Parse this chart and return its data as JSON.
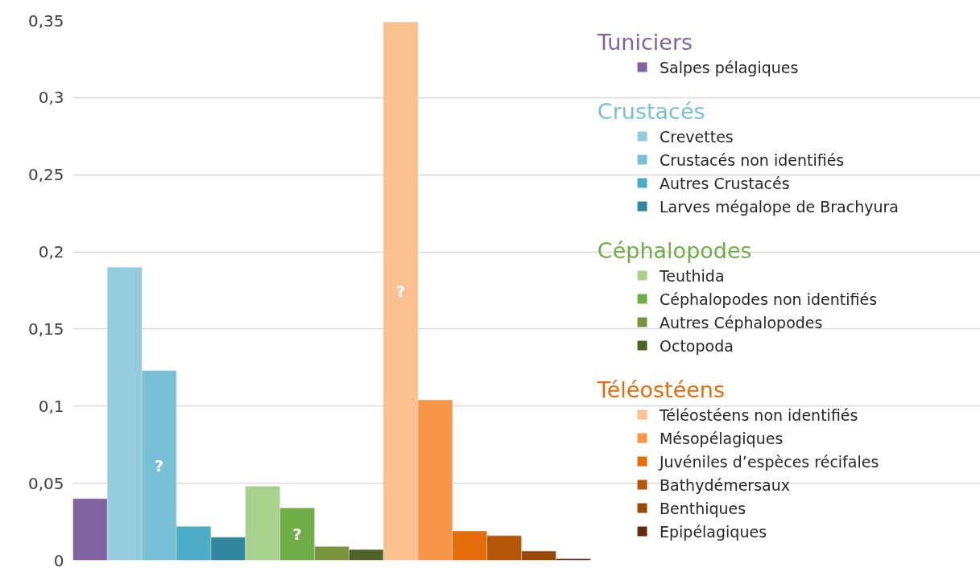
{
  "chart_data": {
    "type": "bar",
    "categories": [
      null
    ],
    "ylim": [
      0,
      0.35
    ],
    "yticks": [
      0,
      {
        "value": 0.05,
        "label": "0,05"
      },
      {
        "value": 0.1,
        "label": "0,1"
      },
      {
        "value": 0.15,
        "label": "0,15"
      },
      {
        "value": 0.2,
        "label": "0,2"
      },
      {
        "value": 0.25,
        "label": "0,25"
      },
      {
        "value": 0.3,
        "label": "0,3"
      },
      {
        "value": 0.35,
        "label": "0,35"
      }
    ],
    "grid": "y",
    "legend": "right",
    "tick_labels": "y",
    "annotations": [
      "Tuniciers",
      "Crustacés",
      "Céphalopodes",
      "Téléostéens"
    ],
    "series": [
      {
        "name": "Salpes pélagiques",
        "color": "#8064a2",
        "values": [
          0.04
        ]
      },
      {
        "name": "Crevettes",
        "color": "#93cddd",
        "values": [
          0.19
        ]
      },
      {
        "name": "Crustacés non identifiés",
        "color": "#78c0d5",
        "values": [
          0.123
        ],
        "value_labels": [
          "?"
        ]
      },
      {
        "name": "Autres Crustacés",
        "color": "#4bacc6",
        "values": [
          0.022
        ]
      },
      {
        "name": "Larves mégalope de Brachyura",
        "color": "#31859c",
        "values": [
          0.015
        ]
      },
      {
        "name": "Teuthida",
        "color": "#a9d18e",
        "values": [
          0.048
        ]
      },
      {
        "name": "Céphalopodes non identifiés",
        "color": "#70ad47",
        "values": [
          0.034
        ],
        "value_labels": [
          "?"
        ]
      },
      {
        "name": "Autres Céphalopodes",
        "color": "#77933c",
        "values": [
          0.009
        ]
      },
      {
        "name": "Octopoda",
        "color": "#4f6228",
        "values": [
          0.007
        ]
      },
      {
        "name": "Téléostéens non identifiés",
        "color": "#fac090",
        "values": [
          0.349
        ],
        "value_labels": [
          "?"
        ]
      },
      {
        "name": "Mésopélagiques",
        "color": "#f79646",
        "values": [
          0.104
        ]
      },
      {
        "name": "Juvéniles d’espèces récifales",
        "color": "#e46c0a",
        "values": [
          0.019
        ]
      },
      {
        "name": "Bathydémersaux",
        "color": "#b65708",
        "values": [
          0.016
        ]
      },
      {
        "name": "Benthiques",
        "color": "#984807",
        "values": [
          0.006
        ]
      },
      {
        "name": "Epipélagiques",
        "color": "#632b0b",
        "values": [
          0.001
        ]
      }
    ]
  }
}
